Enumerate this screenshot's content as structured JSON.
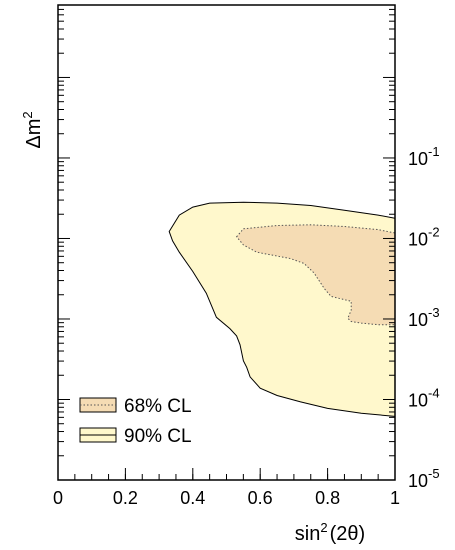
{
  "chart_data": {
    "type": "area",
    "xlabel_main": "sin",
    "xlabel_sup": "2",
    "xlabel_rest": "(2θ)",
    "ylabel_main": "Δm",
    "ylabel_sup": "2",
    "xlim": [
      0,
      1
    ],
    "ylim_log10": [
      -5,
      0.9
    ],
    "y_scale": "log",
    "x_ticks": [
      {
        "value": 0,
        "label": "0"
      },
      {
        "value": 0.2,
        "label": "0.2"
      },
      {
        "value": 0.4,
        "label": "0.4"
      },
      {
        "value": 0.6,
        "label": "0.6"
      },
      {
        "value": 0.8,
        "label": "0.8"
      },
      {
        "value": 1,
        "label": "1"
      }
    ],
    "y_ticks": [
      {
        "exp": -1,
        "base": "10",
        "sup": "-1"
      },
      {
        "exp": -2,
        "base": "10",
        "sup": "-2"
      },
      {
        "exp": -3,
        "base": "10",
        "sup": "-3"
      },
      {
        "exp": -4,
        "base": "10",
        "sup": "-4"
      },
      {
        "exp": -5,
        "base": "10",
        "sup": "-5"
      }
    ],
    "y_tick_side": "right",
    "grid": false,
    "legend_position": "bottom-left",
    "series": [
      {
        "name": "90% CL",
        "fill": "#fff8cc",
        "stroke": "#000000",
        "line_style": "solid",
        "points": [
          [
            0.33,
            0.0122
          ],
          [
            0.36,
            0.0195
          ],
          [
            0.4,
            0.0245
          ],
          [
            0.45,
            0.0275
          ],
          [
            0.55,
            0.0282
          ],
          [
            0.65,
            0.0275
          ],
          [
            0.75,
            0.0257
          ],
          [
            0.85,
            0.0224
          ],
          [
            0.95,
            0.0195
          ],
          [
            1.0,
            0.0178
          ],
          [
            1.0,
            6.17e-05
          ],
          [
            0.9,
            6.76e-05
          ],
          [
            0.8,
            7.76e-05
          ],
          [
            0.72,
            9.33e-05
          ],
          [
            0.65,
            0.000112
          ],
          [
            0.6,
            0.000138
          ],
          [
            0.57,
            0.000191
          ],
          [
            0.56,
            0.000251
          ],
          [
            0.55,
            0.000302
          ],
          [
            0.54,
            0.000479
          ],
          [
            0.53,
            0.000617
          ],
          [
            0.51,
            0.000759
          ],
          [
            0.47,
            0.00105
          ],
          [
            0.44,
            0.00209
          ],
          [
            0.4,
            0.00389
          ],
          [
            0.36,
            0.00676
          ],
          [
            0.34,
            0.00933
          ]
        ]
      },
      {
        "name": "68% CL",
        "fill": "#f5dcb4",
        "stroke": "#555555",
        "line_style": "dotted",
        "points": [
          [
            0.53,
            0.0105
          ],
          [
            0.55,
            0.0132
          ],
          [
            0.65,
            0.0145
          ],
          [
            0.75,
            0.0148
          ],
          [
            0.85,
            0.0141
          ],
          [
            0.95,
            0.0129
          ],
          [
            1.0,
            0.0117
          ],
          [
            1.0,
            0.00085
          ],
          [
            0.95,
            0.00085
          ],
          [
            0.9,
            0.00089
          ],
          [
            0.87,
            0.00093
          ],
          [
            0.86,
            0.00102
          ],
          [
            0.87,
            0.00129
          ],
          [
            0.87,
            0.00166
          ],
          [
            0.81,
            0.00191
          ],
          [
            0.79,
            0.0024
          ],
          [
            0.76,
            0.00372
          ],
          [
            0.73,
            0.0049
          ],
          [
            0.69,
            0.00562
          ],
          [
            0.64,
            0.00617
          ],
          [
            0.59,
            0.00676
          ],
          [
            0.55,
            0.00832
          ]
        ]
      }
    ],
    "legend": [
      {
        "label": "68% CL",
        "fill": "#f5dcb4",
        "line_style": "dotted"
      },
      {
        "label": "90% CL",
        "fill": "#fff8cc",
        "line_style": "solid"
      }
    ]
  }
}
